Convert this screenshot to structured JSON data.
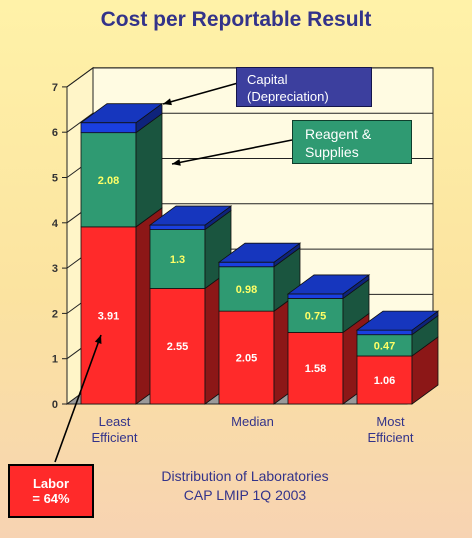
{
  "title": "Cost per Reportable Result",
  "subtitle_line1": "Distribution of Laboratories",
  "subtitle_line2": "CAP LMIP 1Q 2003",
  "callouts": {
    "capital": "Capital (Depreciation)",
    "reagent": "Reagent & Supplies",
    "labor_line1": "Labor",
    "labor_line2": "= 64%"
  },
  "chart_data": {
    "type": "bar",
    "stacked": true,
    "categories": [
      "Least Efficient",
      "",
      "Median",
      "",
      "Most Efficient"
    ],
    "series": [
      {
        "name": "Labor",
        "color": "#ff2a2a",
        "values": [
          3.91,
          2.55,
          2.05,
          1.58,
          1.06
        ]
      },
      {
        "name": "Reagent & Supplies",
        "color": "#2f9a72",
        "values": [
          2.08,
          1.3,
          0.98,
          0.75,
          0.47
        ]
      },
      {
        "name": "Capital (Depreciation)",
        "color": "#1a3fe0",
        "values": [
          0.22,
          0.1,
          0.1,
          0.1,
          0.1
        ]
      }
    ],
    "ylim": [
      0,
      7
    ],
    "yticks": [
      "0",
      "1",
      "2",
      "3",
      "4",
      "5",
      "6",
      "7"
    ],
    "data_labels": [
      {
        "labor": "3.91",
        "reagent": "2.08"
      },
      {
        "labor": "2.55",
        "reagent": "1.3"
      },
      {
        "labor": "2.05",
        "reagent": "0.98"
      },
      {
        "labor": "1.58",
        "reagent": "0.75"
      },
      {
        "labor": "1.06",
        "reagent": "0.47"
      }
    ],
    "xlabel": "",
    "ylabel": ""
  }
}
